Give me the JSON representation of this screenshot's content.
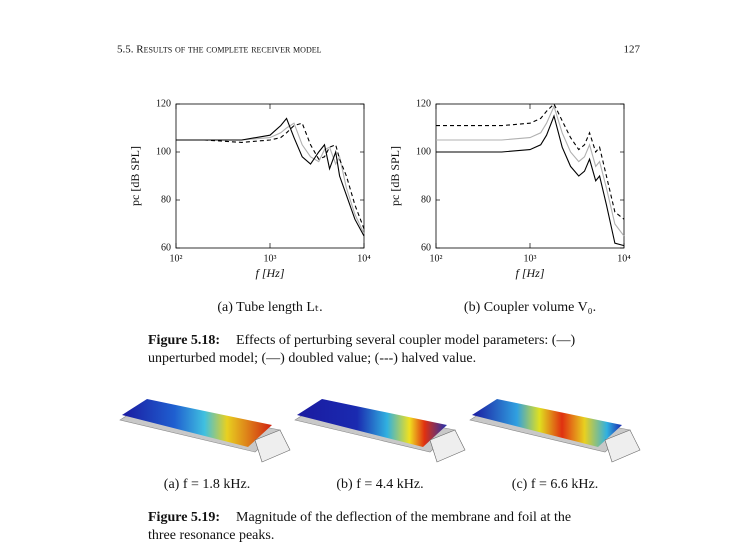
{
  "header": {
    "section": "5.5. Results of the complete receiver model",
    "page": "127"
  },
  "chart_data": [
    {
      "type": "line",
      "xscale": "log",
      "x": [
        100,
        200,
        500,
        1000,
        1300,
        1500,
        1800,
        2200,
        2700,
        3300,
        3800,
        4300,
        5000,
        5500,
        6500,
        8000,
        10000
      ],
      "xlim": [
        100,
        10000
      ],
      "xticks": [
        {
          "value": 100,
          "label": "10²"
        },
        {
          "value": 1000,
          "label": "10³"
        },
        {
          "value": 10000,
          "label": "10⁴"
        }
      ],
      "ylim": [
        60,
        120
      ],
      "yticks": [
        60,
        80,
        100,
        120
      ],
      "xlabel": "f [Hz]",
      "ylabel": "pc [dB SPL]",
      "series": [
        {
          "color": "#b0b0b0",
          "dash": false,
          "values": [
            105,
            105,
            105,
            106,
            108,
            110,
            112,
            103,
            98,
            96,
            101,
            102,
            95,
            98,
            85,
            74,
            66
          ]
        },
        {
          "color": "#000000",
          "dash": false,
          "values": [
            105,
            105,
            105,
            107,
            111,
            114,
            106,
            98,
            95,
            100,
            103,
            93,
            100,
            90,
            82,
            72,
            65
          ]
        },
        {
          "color": "#000000",
          "dash": true,
          "values": [
            105,
            105,
            104,
            105,
            106,
            108,
            111,
            112,
            103,
            97,
            98,
            102,
            103,
            97,
            90,
            78,
            68
          ]
        }
      ]
    },
    {
      "type": "line",
      "xscale": "log",
      "x": [
        100,
        200,
        500,
        1000,
        1300,
        1500,
        1800,
        2200,
        2700,
        3300,
        3800,
        4300,
        5000,
        5500,
        6500,
        8000,
        10000
      ],
      "xlim": [
        100,
        10000
      ],
      "xticks": [
        {
          "value": 100,
          "label": "10²"
        },
        {
          "value": 1000,
          "label": "10³"
        },
        {
          "value": 10000,
          "label": "10⁴"
        }
      ],
      "ylim": [
        60,
        120
      ],
      "yticks": [
        60,
        80,
        100,
        120
      ],
      "xlabel": "f [Hz]",
      "ylabel": "pc [dB SPL]",
      "series": [
        {
          "color": "#b0b0b0",
          "dash": false,
          "values": [
            105,
            105,
            105,
            106,
            108,
            112,
            119,
            108,
            100,
            96,
            98,
            103,
            94,
            96,
            85,
            70,
            65
          ]
        },
        {
          "color": "#000000",
          "dash": false,
          "values": [
            100,
            100,
            100,
            101,
            103,
            107,
            115,
            102,
            94,
            90,
            92,
            97,
            88,
            90,
            78,
            62,
            61
          ]
        },
        {
          "color": "#000000",
          "dash": true,
          "values": [
            111,
            111,
            111,
            112,
            114,
            117,
            120,
            113,
            106,
            101,
            103,
            108,
            100,
            102,
            90,
            75,
            72
          ]
        }
      ]
    }
  ],
  "figure_5_18": {
    "subcaptions": [
      "(a) Tube length Lₜ.",
      "(b) Coupler volume V₀."
    ],
    "label": "Figure 5.18:",
    "lines": [
      "Effects of perturbing several coupler model parameters: (—)",
      "unperturbed model; (—) doubled value; (---) halved value."
    ]
  },
  "figure_5_19": {
    "subcaptions": [
      "(a) f = 1.8 kHz.",
      "(b) f = 4.4 kHz.",
      "(c) f = 6.6 kHz."
    ],
    "label": "Figure 5.19:",
    "lines": [
      "Magnitude of the deflection of the membrane and foil at the",
      "three resonance peaks."
    ]
  }
}
